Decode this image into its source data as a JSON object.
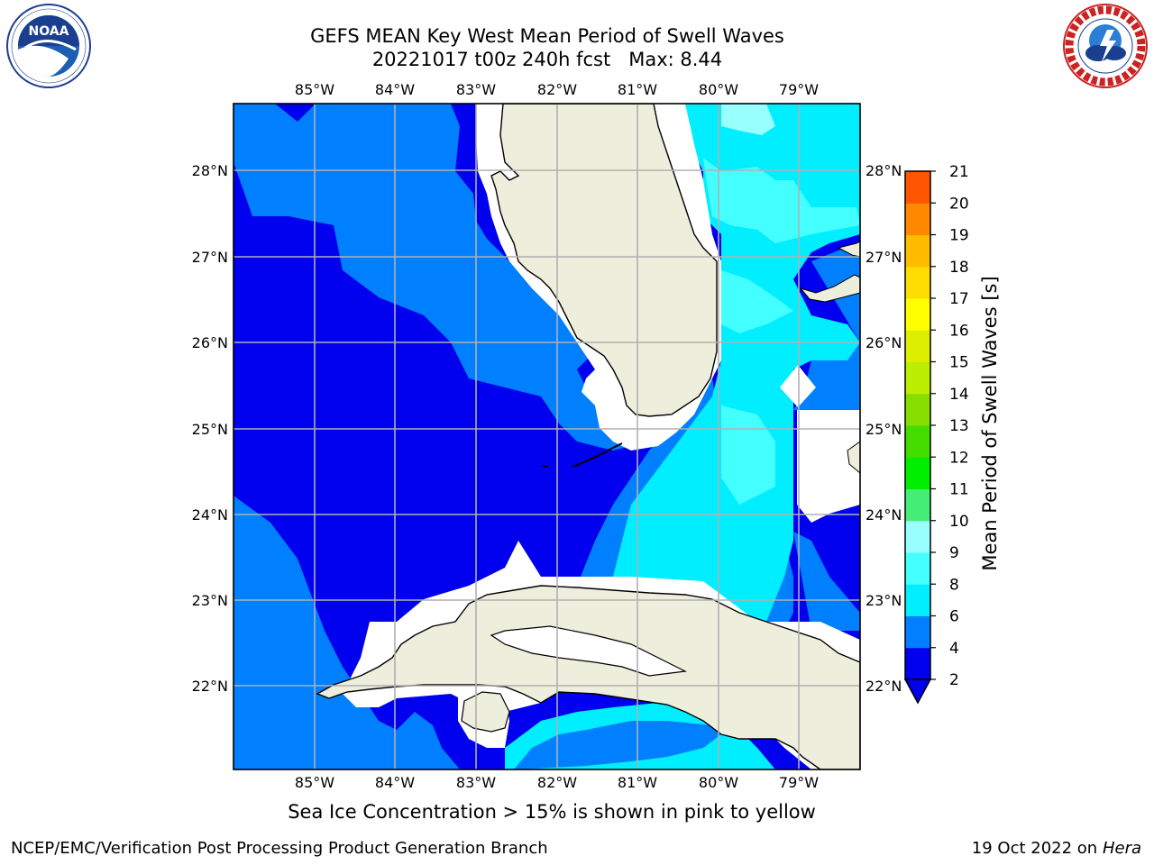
{
  "header": {
    "title_line1": "GEFS MEAN Key West Mean Period of Swell Waves",
    "title_line2": "20221017 t00z 240h fcst   Max: 8.44"
  },
  "logos": {
    "left": {
      "name": "noaa-logo",
      "text": "NOAA",
      "ring_text": "NATIONAL OCEANIC AND ATMOSPHERIC ADMINISTRATION · U.S. DEPARTMENT OF COMMERCE"
    },
    "right": {
      "name": "nws-logo",
      "ring_text": "NATIONAL WEATHER SERVICE"
    }
  },
  "map": {
    "lon_labels": [
      "85°W",
      "84°W",
      "83°W",
      "82°W",
      "81°W",
      "80°W",
      "79°W"
    ],
    "lat_labels": [
      "28°N",
      "27°N",
      "26°N",
      "25°N",
      "24°N",
      "23°N",
      "22°N"
    ],
    "land_color": "#eeeedc",
    "nodata_color": "#ffffff",
    "grid_color": "#b0b0b0"
  },
  "colorbar": {
    "label": "Mean Period of Swell Waves [s]",
    "ticks": [
      "2",
      "4",
      "6",
      "8",
      "9",
      "10",
      "11",
      "12",
      "13",
      "14",
      "15",
      "16",
      "17",
      "18",
      "19",
      "20",
      "21"
    ],
    "colors": [
      "#0000ee",
      "#0080ff",
      "#00eeff",
      "#44ffff",
      "#99ffff",
      "#44ee77",
      "#00ee00",
      "#44dd00",
      "#88dd00",
      "#bbee00",
      "#ddee00",
      "#ffff00",
      "#ffdd00",
      "#ffbb00",
      "#ff8800",
      "#ff5500",
      "#ff2200",
      "#ff0000"
    ],
    "under_color": "#0000ee"
  },
  "footer": {
    "ice_note": "Sea Ice Concentration > 15% is shown in pink to yellow",
    "left": "NCEP/EMC/Verification Post Processing Product Generation Branch",
    "right_date": "19 Oct 2022 on",
    "right_host": "Hera"
  }
}
